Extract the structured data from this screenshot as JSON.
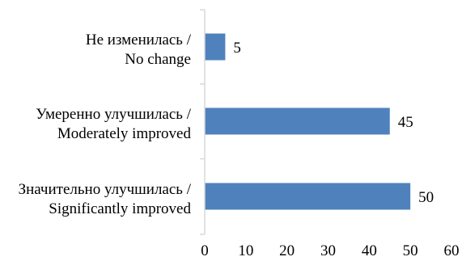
{
  "chart_data": {
    "type": "bar",
    "orientation": "horizontal",
    "categories": [
      [
        "Не изменилась /",
        "No change"
      ],
      [
        "Умеренно улучшилась /",
        "Moderately improved"
      ],
      [
        "Значительно улучшилась /",
        "Significantly improved"
      ]
    ],
    "values": [
      5,
      45,
      50
    ],
    "value_labels": [
      "5",
      "45",
      "50"
    ],
    "xlim": [
      0,
      60
    ],
    "xticks": [
      "0",
      "10",
      "20",
      "30",
      "40",
      "50",
      "60"
    ],
    "grid": false,
    "legend": "none",
    "bar_color": "#4f81bd",
    "axis_color": "#d9d9d9"
  }
}
